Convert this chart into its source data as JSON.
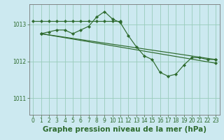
{
  "title": "Graphe pression niveau de la mer (hPa)",
  "background_color": "#cce9f0",
  "grid_color": "#99ccbb",
  "line_color": "#2d6a2d",
  "marker_color": "#2d6a2d",
  "xlim": [
    -0.5,
    23.5
  ],
  "ylim": [
    1010.55,
    1013.55
  ],
  "yticks": [
    1011,
    1012,
    1013
  ],
  "xticks": [
    0,
    1,
    2,
    3,
    4,
    5,
    6,
    7,
    8,
    9,
    10,
    11,
    12,
    13,
    14,
    15,
    16,
    17,
    18,
    19,
    20,
    21,
    22,
    23
  ],
  "line1_x": [
    0,
    1,
    2,
    3,
    4,
    5,
    6,
    7,
    8,
    9,
    10,
    11
  ],
  "line1_y": [
    1013.1,
    1013.1,
    1013.1,
    1013.1,
    1013.1,
    1013.1,
    1013.1,
    1013.1,
    1013.1,
    1013.1,
    1013.1,
    1013.1
  ],
  "line2_x": [
    1,
    2,
    3,
    4,
    5,
    6,
    7,
    8,
    9,
    10,
    11,
    12,
    13,
    14,
    15,
    16,
    17,
    18,
    19,
    20,
    21,
    22,
    23
  ],
  "line2_y": [
    1012.75,
    1012.8,
    1012.85,
    1012.85,
    1012.75,
    1012.85,
    1012.95,
    1013.2,
    1013.35,
    1013.15,
    1013.05,
    1012.7,
    1012.4,
    1012.15,
    1012.05,
    1011.7,
    1011.6,
    1011.65,
    1011.9,
    1012.1,
    1012.1,
    1012.05,
    1012.05
  ],
  "line3_x": [
    1,
    23
  ],
  "line3_y": [
    1012.75,
    1012.05
  ],
  "line4_x": [
    1,
    23
  ],
  "line4_y": [
    1012.75,
    1011.95
  ],
  "title_fontsize": 7.5,
  "tick_fontsize": 5.5
}
